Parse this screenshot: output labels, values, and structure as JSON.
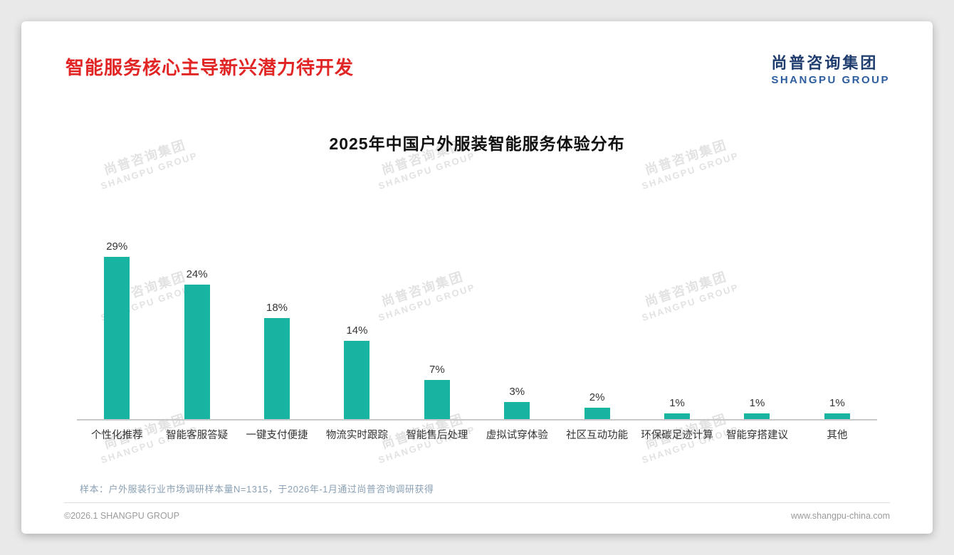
{
  "page": {
    "title": "智能服务核心主导新兴潜力待开发",
    "logo": {
      "cn": "尚普咨询集团",
      "en": "SHANGPU GROUP"
    },
    "watermark": {
      "line1": "尚普咨询集团",
      "line2": "SHANGPU GROUP"
    },
    "note": "样本：户外服装行业市场调研样本量N=1315，于2026年-1月通过尚普咨询调研获得",
    "footer": {
      "copyright": "©2026.1 SHANGPU GROUP",
      "website": "www.shangpu-china.com"
    }
  },
  "chart_data": {
    "type": "bar",
    "title": "2025年中国户外服装智能服务体验分布",
    "categories": [
      "个性化推荐",
      "智能客服答疑",
      "一键支付便捷",
      "物流实时跟踪",
      "智能售后处理",
      "虚拟试穿体验",
      "社区互动功能",
      "环保碳足迹计算",
      "智能穿搭建议",
      "其他"
    ],
    "values": [
      29,
      24,
      18,
      14,
      7,
      3,
      2,
      1,
      1,
      1
    ],
    "value_labels": [
      "29%",
      "24%",
      "18%",
      "14%",
      "7%",
      "3%",
      "2%",
      "1%",
      "1%",
      "1%"
    ],
    "bar_color": "#19b3a2",
    "ylim": [
      0,
      32
    ],
    "xlabel": "",
    "ylabel": "",
    "grid": false,
    "legend": "none"
  }
}
